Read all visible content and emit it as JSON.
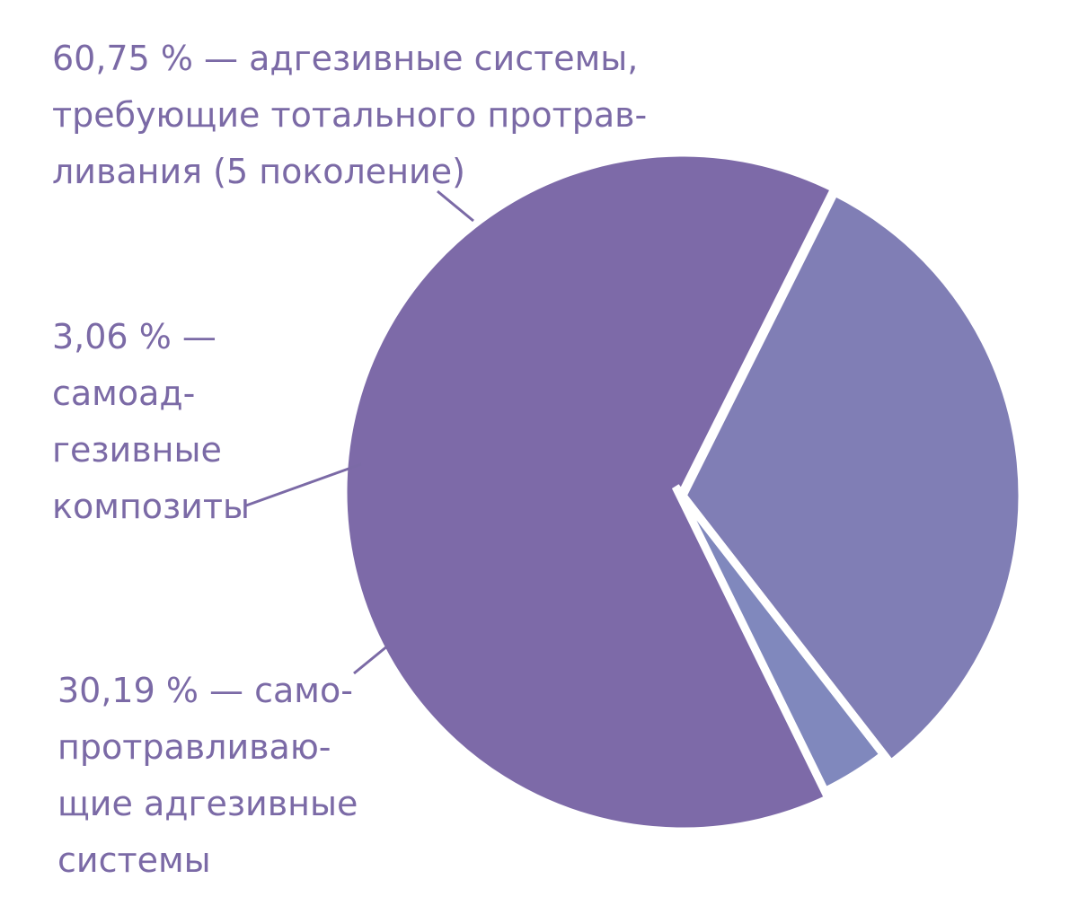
{
  "chart_data": {
    "type": "pie",
    "title": "",
    "categories": [
      "адгезивные системы, требующие тотального протравливания (5 поколение)",
      "самоадгезивные композиты",
      "самопротравливающие адгезивные системы"
    ],
    "values": [
      60.75,
      3.06,
      30.19
    ],
    "unit": "%",
    "colors": [
      "#7d6aa8",
      "#8088bd",
      "#807eb5"
    ],
    "leader_color": "#7b6aa6",
    "start_clockwise_from": "bottom-right",
    "separator_color": "#ffffff",
    "labels": [
      {
        "lines": [
          "60,75 % — адгезивные системы,",
          "требующие тотального протрав-",
          "ливания (5 поколение)"
        ]
      },
      {
        "lines": [
          "3,06 %  —",
          "самоад-",
          "гезивные",
          "композиты"
        ]
      },
      {
        "lines": [
          "30,19 % — само-",
          "протравливаю-",
          "щие адгезивные",
          "системы"
        ]
      }
    ]
  }
}
